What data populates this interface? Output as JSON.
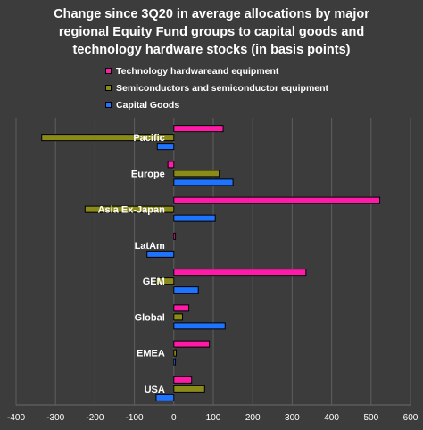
{
  "chart_data": {
    "type": "bar",
    "orientation": "horizontal",
    "title_lines": [
      "Change since 3Q20 in average allocations by major",
      "regional Equity Fund groups to capital goods and",
      "technology hardware stocks (in basis points)"
    ],
    "categories": [
      "Pacific",
      "Europe",
      "Asia Ex-Japan",
      "LatAm",
      "GEM",
      "Global",
      "EMEA",
      "USA"
    ],
    "series": [
      {
        "name": "Technology hardwareand equipment",
        "color": "#ff1aa8",
        "values": [
          125,
          -15,
          522,
          4,
          335,
          38,
          90,
          45
        ]
      },
      {
        "name": "Semiconductors and semiconductor equipment",
        "color": "#8b8b1a",
        "values": [
          -335,
          115,
          -225,
          0,
          -45,
          22,
          6,
          78
        ]
      },
      {
        "name": "Capital Goods",
        "color": "#1e73ff",
        "values": [
          -42,
          150,
          105,
          -68,
          62,
          130,
          4,
          -45
        ]
      }
    ],
    "x_ticks": [
      "-400",
      "-300",
      "-200",
      "-100",
      "0",
      "100",
      "200",
      "300",
      "400",
      "500",
      "600"
    ],
    "xlim": [
      -400,
      600
    ],
    "grid": "vertical",
    "legend_position": "top"
  }
}
